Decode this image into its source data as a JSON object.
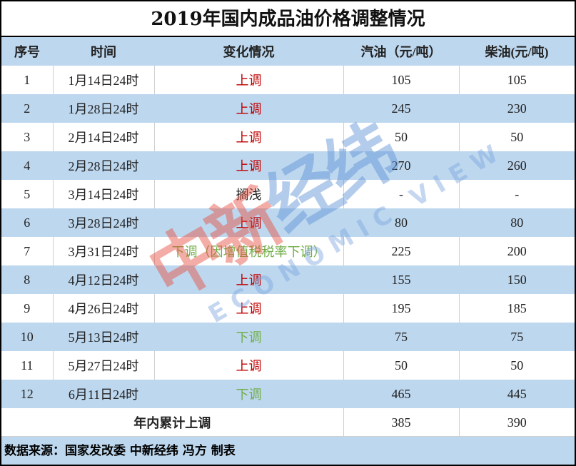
{
  "title": "2019年国内成品油价格调整情况",
  "headers": [
    "序号",
    "时间",
    "变化情况",
    "汽油（元/吨）",
    "柴油(元/吨)"
  ],
  "rows": [
    {
      "no": "1",
      "time": "1月14日24时",
      "change": "上调",
      "dir": "up",
      "gas": "105",
      "diesel": "105"
    },
    {
      "no": "2",
      "time": "1月28日24时",
      "change": "上调",
      "dir": "up",
      "gas": "245",
      "diesel": "230"
    },
    {
      "no": "3",
      "time": "2月14日24时",
      "change": "上调",
      "dir": "up",
      "gas": "50",
      "diesel": "50"
    },
    {
      "no": "4",
      "time": "2月28日24时",
      "change": "上调",
      "dir": "up",
      "gas": "270",
      "diesel": "260"
    },
    {
      "no": "5",
      "time": "3月14日24时",
      "change": "搁浅",
      "dir": "none",
      "gas": "-",
      "diesel": "-"
    },
    {
      "no": "6",
      "time": "3月28日24时",
      "change": "上调",
      "dir": "up",
      "gas": "80",
      "diesel": "80"
    },
    {
      "no": "7",
      "time": "3月31日24时",
      "change": "下调（因增值税税率下调）",
      "dir": "down",
      "gas": "225",
      "diesel": "200"
    },
    {
      "no": "8",
      "time": "4月12日24时",
      "change": "上调",
      "dir": "up",
      "gas": "155",
      "diesel": "150"
    },
    {
      "no": "9",
      "time": "4月26日24时",
      "change": "上调",
      "dir": "up",
      "gas": "195",
      "diesel": "185"
    },
    {
      "no": "10",
      "time": "5月13日24时",
      "change": "下调",
      "dir": "down",
      "gas": "75",
      "diesel": "75"
    },
    {
      "no": "11",
      "time": "5月27日24时",
      "change": "上调",
      "dir": "up",
      "gas": "50",
      "diesel": "50"
    },
    {
      "no": "12",
      "time": "6月11日24时",
      "change": "下调",
      "dir": "down",
      "gas": "465",
      "diesel": "445"
    }
  ],
  "total": {
    "label": "年内累计上调",
    "gas": "385",
    "diesel": "390"
  },
  "footer": "数据来源：国家发改委 中新经纬 冯方 制表",
  "watermark": {
    "cn_red": "中新",
    "cn_blue": "经纬",
    "en": "ECONOMIC VIEW"
  },
  "colors": {
    "header_bg": "#bdd7ee",
    "up": "#c00000",
    "down": "#70ad47"
  }
}
